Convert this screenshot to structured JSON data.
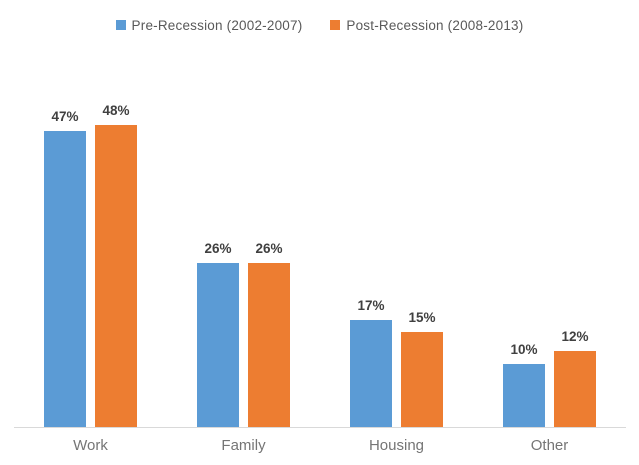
{
  "chart_data": {
    "type": "bar",
    "title": "",
    "xlabel": "",
    "ylabel": "",
    "categories": [
      "Work",
      "Family",
      "Housing",
      "Other"
    ],
    "series": [
      {
        "name": "Pre-Recession (2002-2007)",
        "color": "#5B9BD5",
        "values": [
          47,
          26,
          17,
          10
        ]
      },
      {
        "name": "Post-Recession (2008-2013)",
        "color": "#ED7D31",
        "values": [
          48,
          26,
          15,
          12
        ]
      }
    ],
    "value_suffix": "%",
    "data_labels": true,
    "ylim": [
      0,
      50
    ],
    "grid": false,
    "legend_position": "top",
    "axis_line_color": "#d9d9d9"
  }
}
